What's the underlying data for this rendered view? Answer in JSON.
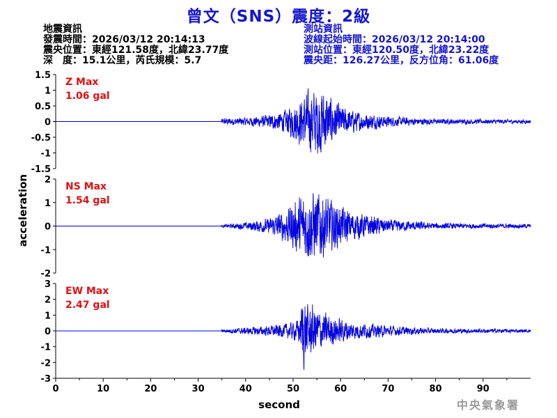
{
  "header": {
    "title": "曾文（SNS）震度：2級"
  },
  "quake_info": {
    "heading": "地震資訊",
    "origin_time": "發震時間：2026/03/12 20:14:13",
    "epicenter": "震央位置：東經121.58度，北緯23.77度",
    "depth_magnitude": "深　度：15.1公里，芮氏規模：5.7"
  },
  "station_info": {
    "heading": "測站資訊",
    "wave_start": "波線起始時間：2026/03/12 20:14:00",
    "location": "測站位置：東經120.50度，北緯23.22度",
    "distance": "震央距：126.27公里，反方位角：61.06度"
  },
  "footer": {
    "agency": "中央氣象署"
  },
  "chart_data": {
    "type": "line",
    "xlabel": "second",
    "ylabel": "acceleration",
    "xlim": [
      0,
      100
    ],
    "xticks": [
      0,
      10,
      20,
      30,
      40,
      50,
      60,
      70,
      80,
      90
    ],
    "line_color": "#0000e0",
    "label_color": "#e01010",
    "panels": [
      {
        "name": "Z",
        "label_line1": "Z Max",
        "label_line2": "1.06 gal",
        "max": 1.06,
        "ylim": [
          -1.5,
          1.5
        ],
        "yticks": [
          1.5,
          1,
          0.5,
          0,
          -0.5,
          -1,
          -1.5
        ],
        "envelope": [
          [
            0,
            0.0
          ],
          [
            34.8,
            0.0
          ],
          [
            35,
            0.1
          ],
          [
            40,
            0.12
          ],
          [
            45,
            0.2
          ],
          [
            48,
            0.3
          ],
          [
            50,
            0.5
          ],
          [
            52,
            0.75
          ],
          [
            54,
            0.95
          ],
          [
            56,
            1.0
          ],
          [
            58,
            0.7
          ],
          [
            60,
            0.45
          ],
          [
            63,
            0.3
          ],
          [
            70,
            0.15
          ],
          [
            80,
            0.08
          ],
          [
            100,
            0.06
          ]
        ]
      },
      {
        "name": "NS",
        "label_line1": "NS Max",
        "label_line2": "1.54 gal",
        "max": 1.54,
        "ylim": [
          -2,
          2
        ],
        "yticks": [
          2,
          1,
          0,
          -1,
          -2
        ],
        "envelope": [
          [
            0,
            0.0
          ],
          [
            34.8,
            0.0
          ],
          [
            35,
            0.05
          ],
          [
            40,
            0.15
          ],
          [
            45,
            0.3
          ],
          [
            48,
            0.6
          ],
          [
            50,
            0.9
          ],
          [
            52,
            1.25
          ],
          [
            54,
            1.4
          ],
          [
            56,
            1.3
          ],
          [
            58,
            1.0
          ],
          [
            60,
            0.75
          ],
          [
            63,
            0.55
          ],
          [
            70,
            0.25
          ],
          [
            80,
            0.12
          ],
          [
            100,
            0.08
          ]
        ]
      },
      {
        "name": "EW",
        "label_line1": "EW Max",
        "label_line2": "2.47 gal",
        "max": 2.47,
        "ylim": [
          -3,
          3
        ],
        "yticks": [
          3,
          2,
          1,
          0,
          -1,
          -2,
          -3
        ],
        "envelope": [
          [
            0,
            0.0
          ],
          [
            34.8,
            0.0
          ],
          [
            35,
            0.1
          ],
          [
            40,
            0.2
          ],
          [
            45,
            0.3
          ],
          [
            50,
            0.5
          ],
          [
            51.5,
            0.8
          ],
          [
            52,
            2.3
          ],
          [
            53,
            1.6
          ],
          [
            55,
            1.3
          ],
          [
            57,
            1.0
          ],
          [
            60,
            0.7
          ],
          [
            63,
            0.5
          ],
          [
            70,
            0.3
          ],
          [
            80,
            0.15
          ],
          [
            100,
            0.1
          ]
        ]
      }
    ]
  }
}
